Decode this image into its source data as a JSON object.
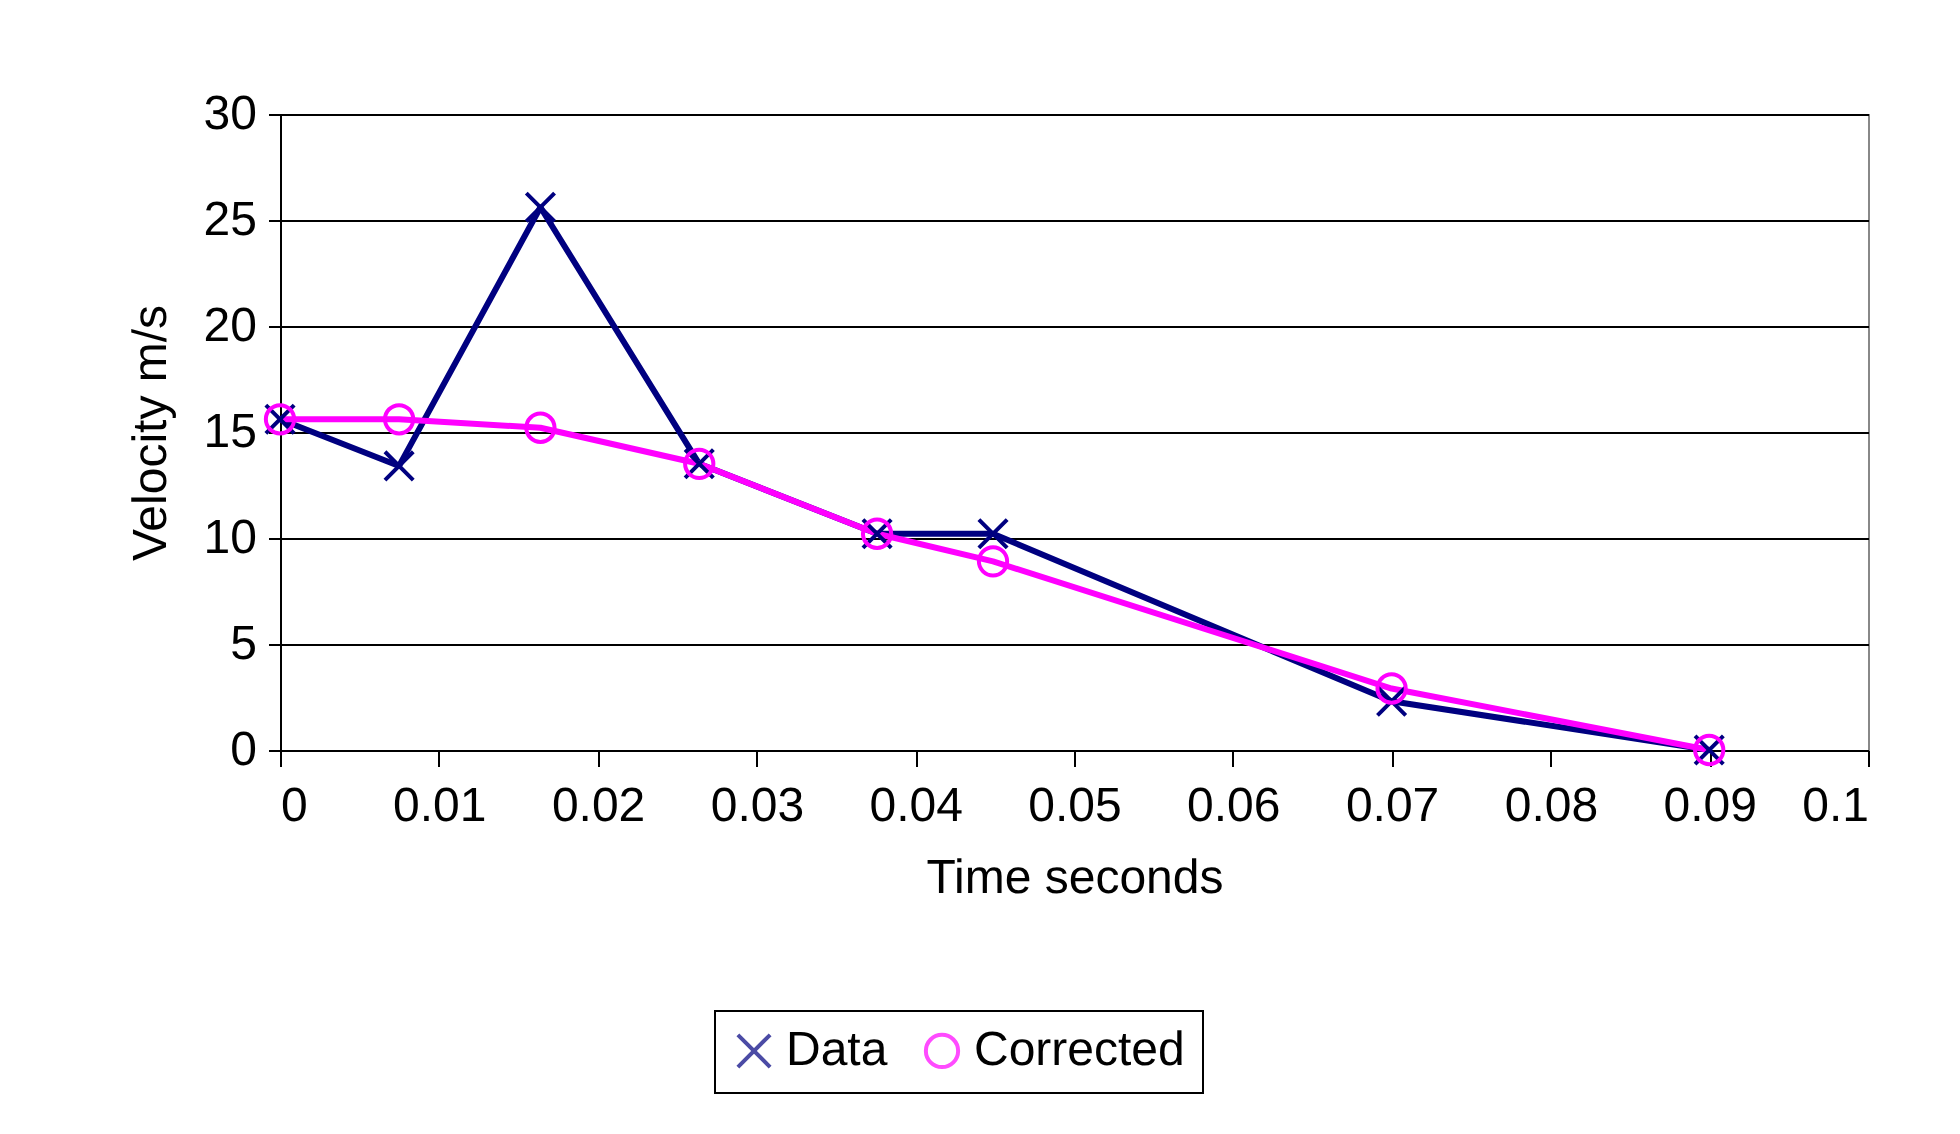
{
  "chart_data": {
    "type": "line",
    "xlabel": "Time seconds",
    "ylabel": "Velocity m/s",
    "x": [
      0,
      0.0075,
      0.0164,
      0.0264,
      0.0376,
      0.0449,
      0.07,
      0.09
    ],
    "series": [
      {
        "name": "Data",
        "color": "#000080",
        "marker": "cross",
        "values": [
          15.6,
          13.4,
          25.6,
          13.5,
          10.2,
          10.2,
          2.3,
          0
        ]
      },
      {
        "name": "Corrected",
        "color": "#ff00ff",
        "marker": "circle",
        "values": [
          15.6,
          15.6,
          15.2,
          13.5,
          10.2,
          8.9,
          2.9,
          0
        ]
      }
    ],
    "xlim": [
      0,
      0.1
    ],
    "xticks": [
      0,
      0.01,
      0.02,
      0.03,
      0.04,
      0.05,
      0.06,
      0.07,
      0.08,
      0.09,
      0.1
    ],
    "ylim": [
      0,
      30
    ],
    "yticks": [
      0,
      5,
      10,
      15,
      20,
      25,
      30
    ],
    "grid": "y",
    "legend": "bottom"
  }
}
